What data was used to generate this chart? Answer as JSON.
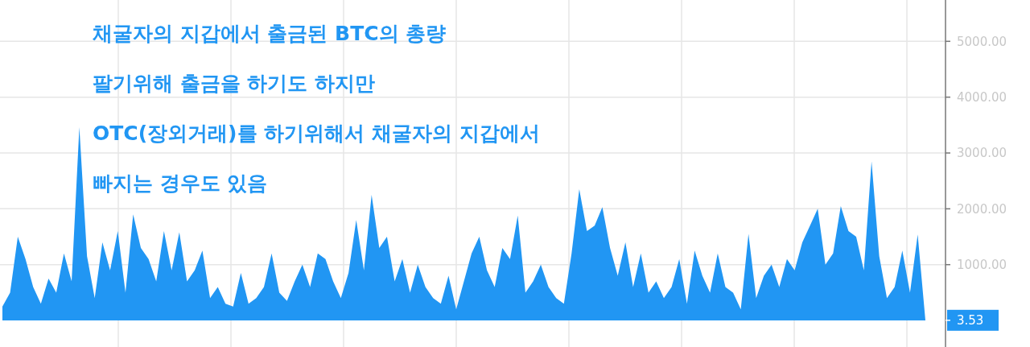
{
  "chart_data": {
    "type": "area",
    "categories": [
      null,
      null,
      null,
      null,
      null,
      null,
      null,
      null,
      null,
      null,
      null,
      null,
      null,
      null,
      null,
      null,
      null,
      null,
      null,
      null,
      null,
      null,
      null,
      null,
      null,
      null,
      null,
      null,
      null,
      null,
      null,
      null,
      null,
      null,
      null,
      null,
      null,
      null,
      null,
      null,
      null,
      null,
      null,
      null,
      null,
      null,
      null,
      null,
      null,
      null,
      null,
      null,
      null,
      null,
      null,
      null,
      null,
      null,
      null,
      null,
      null,
      null,
      null,
      null,
      null,
      null,
      null,
      null,
      null,
      null,
      null,
      null,
      null,
      null,
      null,
      null,
      null,
      null,
      null,
      null,
      null,
      null,
      null,
      null,
      null,
      null,
      null,
      null,
      null,
      null,
      null,
      null,
      null,
      null,
      null,
      null,
      null,
      null,
      null,
      null,
      null,
      null,
      null,
      null,
      null,
      null,
      null,
      null,
      null,
      null,
      null,
      null,
      null,
      null,
      null,
      null,
      null,
      null,
      null,
      null,
      null
    ],
    "series": [
      {
        "color": "#2196f3",
        "values": [
          250,
          500,
          1500,
          1100,
          600,
          300,
          750,
          500,
          1200,
          700,
          3460,
          1150,
          400,
          1400,
          900,
          1600,
          500,
          1900,
          1300,
          1100,
          700,
          1600,
          900,
          1580,
          700,
          900,
          1250,
          400,
          600,
          300,
          250,
          850,
          300,
          400,
          600,
          1200,
          500,
          350,
          700,
          1000,
          600,
          1200,
          1100,
          700,
          400,
          850,
          1800,
          900,
          2250,
          1300,
          1500,
          700,
          1100,
          500,
          1000,
          600,
          400,
          300,
          800,
          200,
          700,
          1200,
          1500,
          900,
          600,
          1300,
          1100,
          1880,
          500,
          700,
          1000,
          600,
          400,
          300,
          1200,
          2350,
          1600,
          1700,
          2030,
          1300,
          800,
          1400,
          600,
          1200,
          500,
          700,
          400,
          600,
          1100,
          300,
          1250,
          800,
          500,
          1200,
          600,
          500,
          200,
          1550,
          400,
          800,
          1000,
          600,
          1100,
          900,
          1400,
          1700,
          2000,
          1000,
          1200,
          2050,
          1600,
          1500,
          900,
          2850,
          1150,
          400,
          600,
          1250,
          500,
          1540,
          3.53
        ]
      }
    ],
    "ylim": [
      -475,
      5740
    ],
    "yticks": [
      {
        "value": 1000,
        "label": "1000.00"
      },
      {
        "value": 2000,
        "label": "2000.00"
      },
      {
        "value": 3000,
        "label": "3000.00"
      },
      {
        "value": 4000,
        "label": "4000.00"
      },
      {
        "value": 5000,
        "label": "5000.00"
      }
    ],
    "grid": true,
    "tick_labels": "y",
    "annotations": [
      "채굴자의 지갑에서 출금된 BTC의 총량",
      "팔기위해 출금을 하기도 하지만",
      "OTC(장외거래)를 하기위해서 채굴자의 지갑에서",
      "빠지는 경우도 있음",
      "3.53"
    ]
  }
}
